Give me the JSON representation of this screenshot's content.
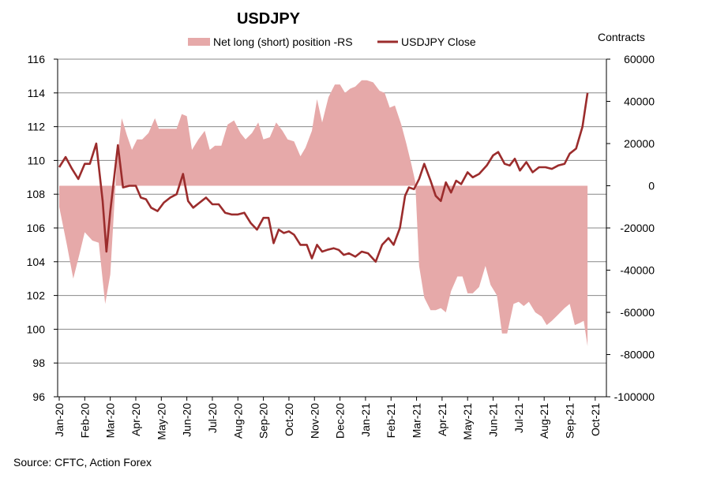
{
  "chart_data": {
    "type": "area+line",
    "title": "USDJPY",
    "right_axis_title": "Contracts",
    "source": "Source: CFTC, Action Forex",
    "colors": {
      "area": "#e6a9a9",
      "line": "#9b2c2c",
      "grid": "#888888"
    },
    "legend": [
      {
        "label": "Net long (short) position -RS",
        "kind": "area"
      },
      {
        "label": "USDJPY Close",
        "kind": "line"
      }
    ],
    "x_labels": [
      "Jan-20",
      "Feb-20",
      "Mar-20",
      "Apr-20",
      "May-20",
      "Jun-20",
      "Jul-20",
      "Aug-20",
      "Sep-20",
      "Oct-20",
      "Nov-20",
      "Dec-20",
      "Jan-21",
      "Feb-21",
      "Mar-21",
      "Apr-21",
      "May-21",
      "Jun-21",
      "Jul-21",
      "Aug-21",
      "Sep-21",
      "Oct-21"
    ],
    "y_left": {
      "min": 96,
      "max": 116,
      "step": 2,
      "ticks": [
        "116",
        "114",
        "112",
        "110",
        "108",
        "106",
        "104",
        "102",
        "100",
        "98",
        "96"
      ]
    },
    "y_right": {
      "min": -100000,
      "max": 60000,
      "step": 20000,
      "ticks": [
        "60000",
        "40000",
        "20000",
        "0",
        "-20000",
        "-40000",
        "-60000",
        "-80000",
        "-100000"
      ]
    },
    "series_line": {
      "name": "USDJPY Close",
      "points": [
        [
          0,
          109.6
        ],
        [
          0.25,
          110.2
        ],
        [
          0.5,
          109.5
        ],
        [
          0.75,
          108.9
        ],
        [
          1.0,
          109.8
        ],
        [
          1.2,
          109.8
        ],
        [
          1.45,
          111.0
        ],
        [
          1.7,
          107.6
        ],
        [
          1.85,
          104.6
        ],
        [
          2.0,
          107.0
        ],
        [
          2.3,
          110.9
        ],
        [
          2.5,
          108.4
        ],
        [
          2.75,
          108.5
        ],
        [
          3.0,
          108.5
        ],
        [
          3.2,
          107.8
        ],
        [
          3.4,
          107.7
        ],
        [
          3.6,
          107.2
        ],
        [
          3.85,
          107.0
        ],
        [
          4.1,
          107.5
        ],
        [
          4.35,
          107.8
        ],
        [
          4.6,
          108.0
        ],
        [
          4.85,
          109.2
        ],
        [
          5.05,
          107.6
        ],
        [
          5.25,
          107.2
        ],
        [
          5.5,
          107.5
        ],
        [
          5.75,
          107.8
        ],
        [
          6.0,
          107.4
        ],
        [
          6.25,
          107.4
        ],
        [
          6.5,
          106.9
        ],
        [
          6.75,
          106.8
        ],
        [
          7.0,
          106.8
        ],
        [
          7.25,
          106.9
        ],
        [
          7.5,
          106.3
        ],
        [
          7.75,
          105.9
        ],
        [
          8.0,
          106.6
        ],
        [
          8.2,
          106.6
        ],
        [
          8.4,
          105.1
        ],
        [
          8.6,
          105.9
        ],
        [
          8.8,
          105.7
        ],
        [
          9.0,
          105.8
        ],
        [
          9.2,
          105.6
        ],
        [
          9.45,
          105.0
        ],
        [
          9.7,
          105.0
        ],
        [
          9.9,
          104.2
        ],
        [
          10.1,
          105.0
        ],
        [
          10.3,
          104.6
        ],
        [
          10.5,
          104.7
        ],
        [
          10.75,
          104.8
        ],
        [
          10.95,
          104.7
        ],
        [
          11.15,
          104.4
        ],
        [
          11.35,
          104.5
        ],
        [
          11.6,
          104.3
        ],
        [
          11.85,
          104.6
        ],
        [
          12.1,
          104.5
        ],
        [
          12.4,
          104.0
        ],
        [
          12.65,
          105.0
        ],
        [
          12.9,
          105.4
        ],
        [
          13.1,
          105.0
        ],
        [
          13.35,
          106.0
        ],
        [
          13.55,
          107.9
        ],
        [
          13.7,
          108.4
        ],
        [
          13.9,
          108.3
        ],
        [
          14.1,
          108.9
        ],
        [
          14.3,
          109.8
        ],
        [
          14.55,
          108.8
        ],
        [
          14.75,
          107.9
        ],
        [
          14.95,
          107.6
        ],
        [
          15.15,
          108.7
        ],
        [
          15.35,
          108.1
        ],
        [
          15.55,
          108.8
        ],
        [
          15.75,
          108.6
        ],
        [
          16.0,
          109.3
        ],
        [
          16.2,
          109.0
        ],
        [
          16.45,
          109.2
        ],
        [
          16.75,
          109.7
        ],
        [
          17.0,
          110.3
        ],
        [
          17.2,
          110.5
        ],
        [
          17.45,
          109.8
        ],
        [
          17.65,
          109.7
        ],
        [
          17.85,
          110.1
        ],
        [
          18.05,
          109.4
        ],
        [
          18.3,
          109.9
        ],
        [
          18.55,
          109.3
        ],
        [
          18.8,
          109.6
        ],
        [
          19.05,
          109.6
        ],
        [
          19.3,
          109.5
        ],
        [
          19.55,
          109.7
        ],
        [
          19.8,
          109.8
        ],
        [
          20.0,
          110.4
        ],
        [
          20.25,
          110.7
        ],
        [
          20.5,
          112.0
        ],
        [
          20.7,
          114.0
        ]
      ]
    },
    "series_area": {
      "name": "Net long (short) position -RS",
      "points": [
        [
          0,
          -10000
        ],
        [
          0.3,
          -28000
        ],
        [
          0.55,
          -44000
        ],
        [
          0.8,
          -32000
        ],
        [
          1.0,
          -22000
        ],
        [
          1.3,
          -26000
        ],
        [
          1.55,
          -27000
        ],
        [
          1.8,
          -56000
        ],
        [
          2.0,
          -42000
        ],
        [
          2.25,
          10000
        ],
        [
          2.45,
          32000
        ],
        [
          2.65,
          24000
        ],
        [
          2.85,
          17000
        ],
        [
          3.05,
          22000
        ],
        [
          3.25,
          22000
        ],
        [
          3.5,
          25000
        ],
        [
          3.75,
          32000
        ],
        [
          3.9,
          27000
        ],
        [
          4.15,
          27000
        ],
        [
          4.4,
          27000
        ],
        [
          4.6,
          27000
        ],
        [
          4.8,
          34000
        ],
        [
          5.0,
          33000
        ],
        [
          5.2,
          17000
        ],
        [
          5.45,
          22000
        ],
        [
          5.7,
          26000
        ],
        [
          5.9,
          17000
        ],
        [
          6.1,
          19000
        ],
        [
          6.35,
          19000
        ],
        [
          6.6,
          29000
        ],
        [
          6.85,
          31000
        ],
        [
          7.1,
          25000
        ],
        [
          7.3,
          22000
        ],
        [
          7.55,
          25000
        ],
        [
          7.8,
          30000
        ],
        [
          8.0,
          22000
        ],
        [
          8.25,
          23000
        ],
        [
          8.5,
          30000
        ],
        [
          8.75,
          26000
        ],
        [
          8.95,
          22000
        ],
        [
          9.2,
          21000
        ],
        [
          9.45,
          14000
        ],
        [
          9.65,
          18000
        ],
        [
          9.9,
          26000
        ],
        [
          10.1,
          41000
        ],
        [
          10.3,
          30000
        ],
        [
          10.55,
          42000
        ],
        [
          10.8,
          48000
        ],
        [
          11.0,
          48000
        ],
        [
          11.2,
          44000
        ],
        [
          11.4,
          46000
        ],
        [
          11.6,
          47000
        ],
        [
          11.85,
          50000
        ],
        [
          12.05,
          50000
        ],
        [
          12.3,
          49000
        ],
        [
          12.55,
          45000
        ],
        [
          12.75,
          44000
        ],
        [
          12.95,
          37000
        ],
        [
          13.15,
          38000
        ],
        [
          13.4,
          29000
        ],
        [
          13.6,
          20000
        ],
        [
          13.8,
          10000
        ],
        [
          13.95,
          2000
        ],
        [
          14.1,
          -38000
        ],
        [
          14.3,
          -53000
        ],
        [
          14.55,
          -59000
        ],
        [
          14.75,
          -59000
        ],
        [
          14.95,
          -58000
        ],
        [
          15.15,
          -60000
        ],
        [
          15.35,
          -50000
        ],
        [
          15.6,
          -43000
        ],
        [
          15.8,
          -43000
        ],
        [
          16.0,
          -51000
        ],
        [
          16.2,
          -51000
        ],
        [
          16.45,
          -48000
        ],
        [
          16.7,
          -38000
        ],
        [
          16.9,
          -47000
        ],
        [
          17.15,
          -52000
        ],
        [
          17.35,
          -70000
        ],
        [
          17.55,
          -70000
        ],
        [
          17.8,
          -56000
        ],
        [
          18.0,
          -55000
        ],
        [
          18.2,
          -57000
        ],
        [
          18.4,
          -55000
        ],
        [
          18.65,
          -60000
        ],
        [
          18.9,
          -62000
        ],
        [
          19.1,
          -66000
        ],
        [
          19.3,
          -64000
        ],
        [
          19.55,
          -61000
        ],
        [
          19.8,
          -58000
        ],
        [
          20.0,
          -56000
        ],
        [
          20.2,
          -66000
        ],
        [
          20.4,
          -65000
        ],
        [
          20.55,
          -64000
        ],
        [
          20.7,
          -76000
        ]
      ]
    }
  }
}
